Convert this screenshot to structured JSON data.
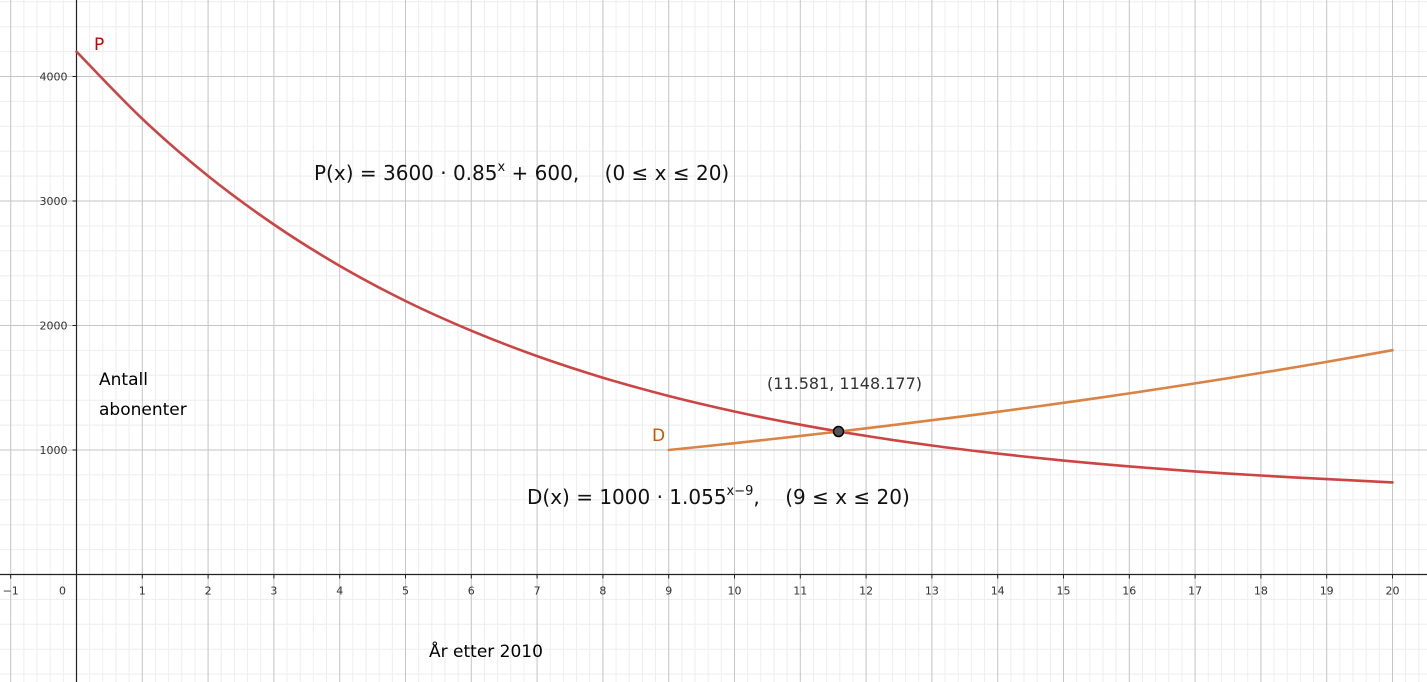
{
  "chart_data": {
    "type": "line",
    "xlabel": "År etter 2010",
    "ylabel": "Antall abonenter",
    "ylabel_lines": [
      "Antall",
      "abonenter"
    ],
    "xlim": [
      -1,
      20.5
    ],
    "ylim": [
      -850,
      4600
    ],
    "grid": true,
    "x_ticks": [
      "-1",
      "0",
      "1",
      "2",
      "3",
      "4",
      "5",
      "6",
      "7",
      "8",
      "9",
      "10",
      "11",
      "12",
      "13",
      "14",
      "15",
      "16",
      "17",
      "18",
      "19",
      "20"
    ],
    "y_ticks": [
      "1000",
      "2000",
      "3000",
      "4000"
    ],
    "series": [
      {
        "name": "P",
        "color": "#cc4444",
        "label_color": "#cc0000",
        "formula": "3600·0.85^x + 600",
        "domain": [
          0,
          20
        ],
        "x": [
          0,
          1,
          2,
          3,
          4,
          5,
          6,
          7,
          8,
          9,
          10,
          11,
          12,
          13,
          14,
          15,
          16,
          17,
          18,
          19,
          20
        ],
        "values": [
          4200,
          3660,
          3201,
          2811,
          2479,
          2197,
          1958,
          1754,
          1581,
          1434,
          1309,
          1203,
          1113,
          1036,
          971,
          915,
          868,
          828,
          795,
          766,
          740
        ]
      },
      {
        "name": "D",
        "color": "#d98345",
        "label_color": "#cc5500",
        "formula": "1000·1.055^(x−9)",
        "domain": [
          9,
          20
        ],
        "x": [
          9,
          10,
          11,
          12,
          13,
          14,
          15,
          16,
          17,
          18,
          19,
          20
        ],
        "values": [
          1000,
          1055,
          1113,
          1174,
          1239,
          1307,
          1379,
          1455,
          1535,
          1619,
          1708,
          1802
        ]
      }
    ],
    "intersection": {
      "x": 11.581,
      "y": 1148.177,
      "label": "(11.581, 1148.177)"
    },
    "annotations": {
      "P_formula": {
        "lhs": "P(x)",
        "rhs": "= 3600 · 0.85",
        "sup": "x",
        "tail": " + 600,",
        "domain": "(0 ≤ x ≤ 20)"
      },
      "D_formula": {
        "lhs": "D(x)",
        "rhs": "= 1000 · 1.055",
        "sup": "x−9",
        "tail": ",",
        "domain": "(9 ≤ x ≤ 20)"
      }
    }
  }
}
